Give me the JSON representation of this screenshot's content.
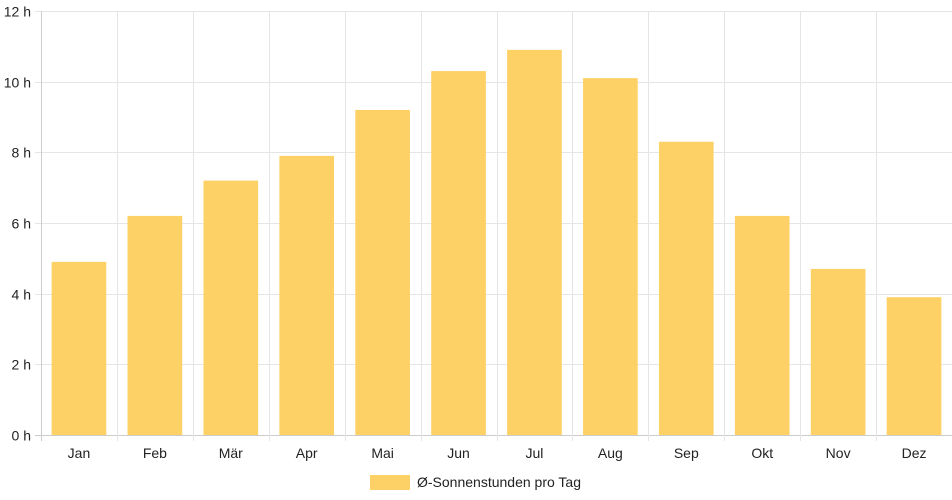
{
  "chart_data": {
    "type": "bar",
    "categories": [
      "Jan",
      "Feb",
      "Mär",
      "Apr",
      "Mai",
      "Jun",
      "Jul",
      "Aug",
      "Sep",
      "Okt",
      "Nov",
      "Dez"
    ],
    "series": [
      {
        "name": "Ø-Sonnenstunden pro Tag",
        "values": [
          4.9,
          6.2,
          7.2,
          7.9,
          9.2,
          10.3,
          10.9,
          10.1,
          8.3,
          6.2,
          4.7,
          3.9
        ]
      }
    ],
    "y_unit_suffix": " h",
    "ylim": [
      0,
      12
    ],
    "y_ticks": [
      0,
      2,
      4,
      6,
      8,
      10,
      12
    ],
    "grid": true,
    "legend_position": "bottom-center",
    "colors": {
      "bar": "#fdd166",
      "grid": "#e5e5e5",
      "axis": "#cccccc",
      "text": "#222222"
    }
  }
}
